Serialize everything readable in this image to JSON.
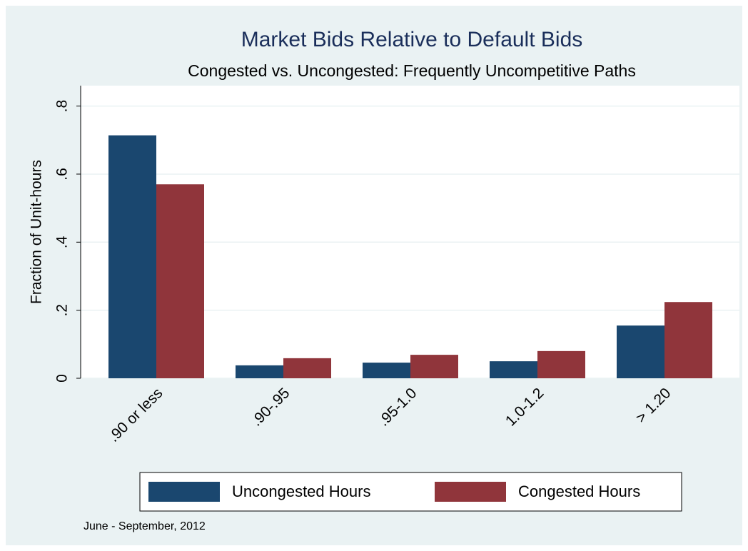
{
  "chart_data": {
    "type": "bar",
    "title": "Market Bids Relative to Default Bids",
    "subtitle": "Congested vs. Uncongested: Frequently Uncompetitive Paths",
    "y_label": "Fraction of Unit-hours",
    "note": "June - September, 2012",
    "categories": [
      ".90 or less",
      ".90-.95",
      ".95-1.0",
      "1.0-1.2",
      "> 1.20"
    ],
    "series": [
      {
        "name": "Uncongested Hours",
        "color": "#1a476f",
        "values": [
          0.714,
          0.038,
          0.046,
          0.05,
          0.155
        ]
      },
      {
        "name": "Congested Hours",
        "color": "#90353b",
        "values": [
          0.57,
          0.059,
          0.069,
          0.08,
          0.224
        ]
      }
    ],
    "ylim": [
      0,
      0.86
    ],
    "yticks": [
      0,
      {
        "value": 0.2,
        "label": ".2"
      },
      {
        "value": 0.4,
        "label": ".4"
      },
      {
        "value": 0.6,
        "label": ".6"
      },
      {
        "value": 0.8,
        "label": ".8"
      }
    ],
    "grid": true,
    "legend": "bottom"
  }
}
